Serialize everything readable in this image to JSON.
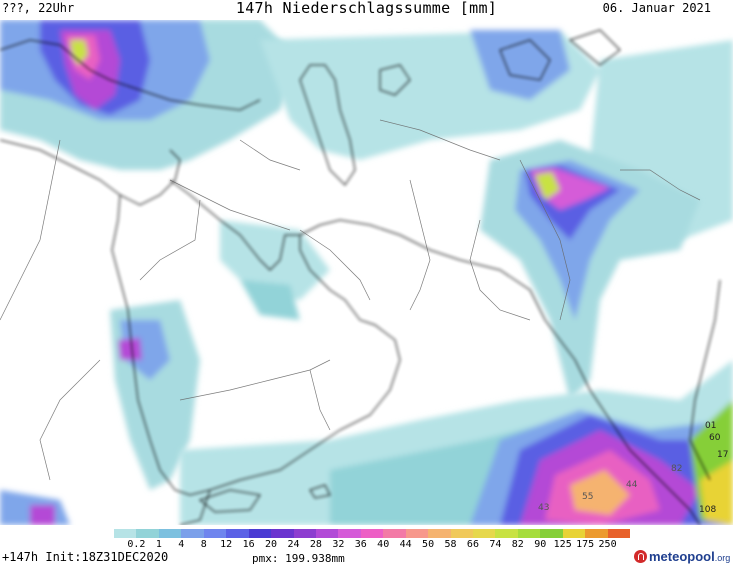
{
  "header": {
    "left": "???, 22Uhr",
    "title": "147h Niederschlagssumme [mm]",
    "right": "06. Januar 2021"
  },
  "map": {
    "value_labels": [
      "01",
      "60",
      "17",
      "82",
      "44",
      "55",
      "43",
      "108"
    ]
  },
  "legend": {
    "ticks": [
      "0.2",
      "1",
      "4",
      "8",
      "12",
      "16",
      "20",
      "24",
      "28",
      "32",
      "36",
      "40",
      "44",
      "50",
      "58",
      "66",
      "74",
      "82",
      "90",
      "125",
      "175",
      "250"
    ],
    "colors": [
      "#b6e3e6",
      "#92d3d8",
      "#7cc0df",
      "#7ba0ea",
      "#6f85ee",
      "#5b61e6",
      "#4a3bd3",
      "#6b34cf",
      "#8d3dd0",
      "#b24ad7",
      "#d55bd8",
      "#ed5fc5",
      "#f37aa6",
      "#f7988c",
      "#f5b36f",
      "#f0c95a",
      "#e6d84c",
      "#c8e243",
      "#a6dd3c",
      "#86cf38",
      "#e8d336",
      "#ec9a2e",
      "#e8612a"
    ]
  },
  "footer": {
    "left": "+147h  Init:18Z31DEC2020",
    "pmx": "pmx: 199.938mm"
  },
  "logo": {
    "text": "meteopool",
    "tld": ".org"
  }
}
